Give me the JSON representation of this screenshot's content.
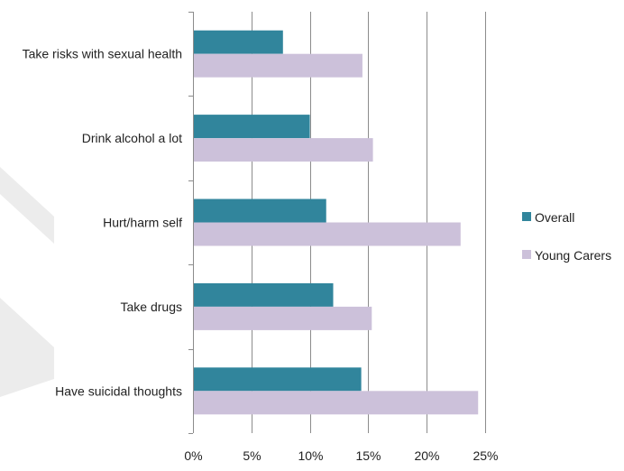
{
  "chart_data": {
    "type": "bar",
    "orientation": "horizontal",
    "categories": [
      "Take risks with sexual health",
      "Drink alcohol a lot",
      "Hurt/harm self",
      "Take drugs",
      "Have suicidal thoughts"
    ],
    "series": [
      {
        "name": "Overall",
        "color": "#31859c",
        "values": [
          7.7,
          10.0,
          11.4,
          12.0,
          14.4
        ]
      },
      {
        "name": "Young Carers",
        "color": "#ccc1da",
        "values": [
          14.5,
          15.4,
          22.9,
          15.3,
          24.4
        ]
      }
    ],
    "xlim": [
      0,
      25
    ],
    "xticks": [
      "0%",
      "5%",
      "10%",
      "15%",
      "20%",
      "25%"
    ],
    "value_format": "percent",
    "grid": "vertical",
    "legend_position": "right"
  }
}
